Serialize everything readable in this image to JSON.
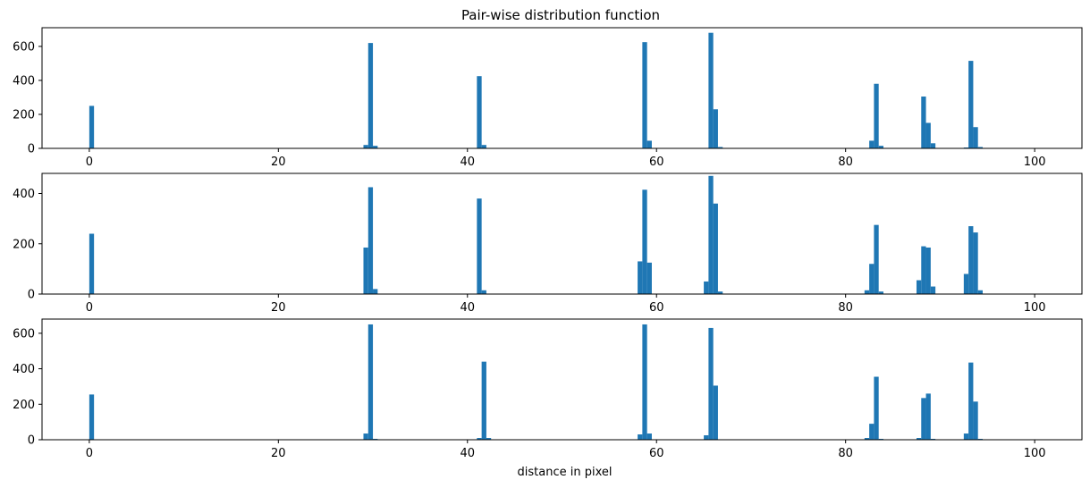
{
  "title": "Pair-wise distribution function",
  "colors": {
    "bar": "#1f77b4",
    "axes": "#000000",
    "background": "#ffffff"
  },
  "chart_data": [
    {
      "type": "bar",
      "title": "Pair-wise distribution function",
      "xlabel": "",
      "ylabel": "",
      "xlim": [
        -5,
        105
      ],
      "ylim": [
        0,
        710
      ],
      "bar_width": 0.5,
      "xticks": [
        0,
        20,
        40,
        60,
        80,
        100
      ],
      "yticks": [
        0,
        200,
        400,
        600
      ],
      "grid": false,
      "bars": [
        {
          "x": 0.25,
          "y": 250
        },
        {
          "x": 29.25,
          "y": 20
        },
        {
          "x": 29.75,
          "y": 620
        },
        {
          "x": 30.25,
          "y": 15
        },
        {
          "x": 41.25,
          "y": 425
        },
        {
          "x": 41.75,
          "y": 20
        },
        {
          "x": 58.75,
          "y": 625
        },
        {
          "x": 59.25,
          "y": 45
        },
        {
          "x": 65.75,
          "y": 680
        },
        {
          "x": 66.25,
          "y": 230
        },
        {
          "x": 66.75,
          "y": 8
        },
        {
          "x": 82.75,
          "y": 45
        },
        {
          "x": 83.25,
          "y": 380
        },
        {
          "x": 83.75,
          "y": 15
        },
        {
          "x": 88.25,
          "y": 305
        },
        {
          "x": 88.75,
          "y": 150
        },
        {
          "x": 89.25,
          "y": 30
        },
        {
          "x": 92.75,
          "y": 5
        },
        {
          "x": 93.25,
          "y": 515
        },
        {
          "x": 93.75,
          "y": 125
        },
        {
          "x": 94.25,
          "y": 8
        }
      ]
    },
    {
      "type": "bar",
      "title": "",
      "xlabel": "",
      "ylabel": "",
      "xlim": [
        -5,
        105
      ],
      "ylim": [
        0,
        480
      ],
      "bar_width": 0.5,
      "xticks": [
        0,
        20,
        40,
        60,
        80,
        100
      ],
      "yticks": [
        0,
        200,
        400
      ],
      "grid": false,
      "bars": [
        {
          "x": 0.25,
          "y": 240
        },
        {
          "x": 29.25,
          "y": 185
        },
        {
          "x": 29.75,
          "y": 425
        },
        {
          "x": 30.25,
          "y": 20
        },
        {
          "x": 41.25,
          "y": 380
        },
        {
          "x": 41.75,
          "y": 15
        },
        {
          "x": 58.25,
          "y": 130
        },
        {
          "x": 58.75,
          "y": 415
        },
        {
          "x": 59.25,
          "y": 125
        },
        {
          "x": 65.25,
          "y": 50
        },
        {
          "x": 65.75,
          "y": 470
        },
        {
          "x": 66.25,
          "y": 360
        },
        {
          "x": 66.75,
          "y": 10
        },
        {
          "x": 82.25,
          "y": 15
        },
        {
          "x": 82.75,
          "y": 120
        },
        {
          "x": 83.25,
          "y": 275
        },
        {
          "x": 83.75,
          "y": 10
        },
        {
          "x": 87.75,
          "y": 55
        },
        {
          "x": 88.25,
          "y": 190
        },
        {
          "x": 88.75,
          "y": 185
        },
        {
          "x": 89.25,
          "y": 30
        },
        {
          "x": 92.75,
          "y": 80
        },
        {
          "x": 93.25,
          "y": 270
        },
        {
          "x": 93.75,
          "y": 245
        },
        {
          "x": 94.25,
          "y": 15
        }
      ]
    },
    {
      "type": "bar",
      "title": "",
      "xlabel": "distance in pixel",
      "ylabel": "",
      "xlim": [
        -5,
        105
      ],
      "ylim": [
        0,
        680
      ],
      "bar_width": 0.5,
      "xticks": [
        0,
        20,
        40,
        60,
        80,
        100
      ],
      "yticks": [
        0,
        200,
        400,
        600
      ],
      "grid": false,
      "bars": [
        {
          "x": 0.25,
          "y": 255
        },
        {
          "x": 29.25,
          "y": 35
        },
        {
          "x": 29.75,
          "y": 650
        },
        {
          "x": 30.25,
          "y": 5
        },
        {
          "x": 41.25,
          "y": 10
        },
        {
          "x": 41.75,
          "y": 440
        },
        {
          "x": 42.25,
          "y": 10
        },
        {
          "x": 58.25,
          "y": 30
        },
        {
          "x": 58.75,
          "y": 650
        },
        {
          "x": 59.25,
          "y": 35
        },
        {
          "x": 65.25,
          "y": 25
        },
        {
          "x": 65.75,
          "y": 630
        },
        {
          "x": 66.25,
          "y": 305
        },
        {
          "x": 82.25,
          "y": 10
        },
        {
          "x": 82.75,
          "y": 90
        },
        {
          "x": 83.25,
          "y": 355
        },
        {
          "x": 83.75,
          "y": 5
        },
        {
          "x": 87.75,
          "y": 10
        },
        {
          "x": 88.25,
          "y": 235
        },
        {
          "x": 88.75,
          "y": 260
        },
        {
          "x": 89.25,
          "y": 5
        },
        {
          "x": 92.75,
          "y": 35
        },
        {
          "x": 93.25,
          "y": 435
        },
        {
          "x": 93.75,
          "y": 215
        },
        {
          "x": 94.25,
          "y": 5
        }
      ]
    }
  ]
}
